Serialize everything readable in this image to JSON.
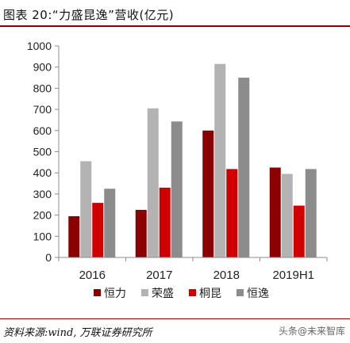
{
  "header": {
    "title": "图表 20:“力盛昆逸”营收(亿元)"
  },
  "footer": {
    "source": "资料来源:wind, 万联证券研究所",
    "watermark": "头条@未来智库"
  },
  "colors": {
    "恒力": "#8B0000",
    "荣盛": "#B3B3B3",
    "桐昆": "#D10000",
    "恒逸": "#8C8C8C",
    "axis": "#8C8C8C"
  },
  "chart_data": {
    "type": "bar",
    "title": "“力盛昆逸”营收(亿元)",
    "categories": [
      "2016",
      "2017",
      "2018",
      "2019H1"
    ],
    "ylim": [
      0,
      1000
    ],
    "yticks": [
      0,
      100,
      200,
      300,
      400,
      500,
      600,
      700,
      800,
      900,
      1000
    ],
    "grid": false,
    "legend_position": "bottom",
    "series": [
      {
        "name": "恒力",
        "values": [
          195,
          225,
          600,
          425
        ]
      },
      {
        "name": "荣盛",
        "values": [
          455,
          705,
          915,
          395
        ]
      },
      {
        "name": "桐昆",
        "values": [
          258,
          330,
          418,
          245
        ]
      },
      {
        "name": "恒逸",
        "values": [
          325,
          643,
          850,
          418
        ]
      }
    ]
  }
}
